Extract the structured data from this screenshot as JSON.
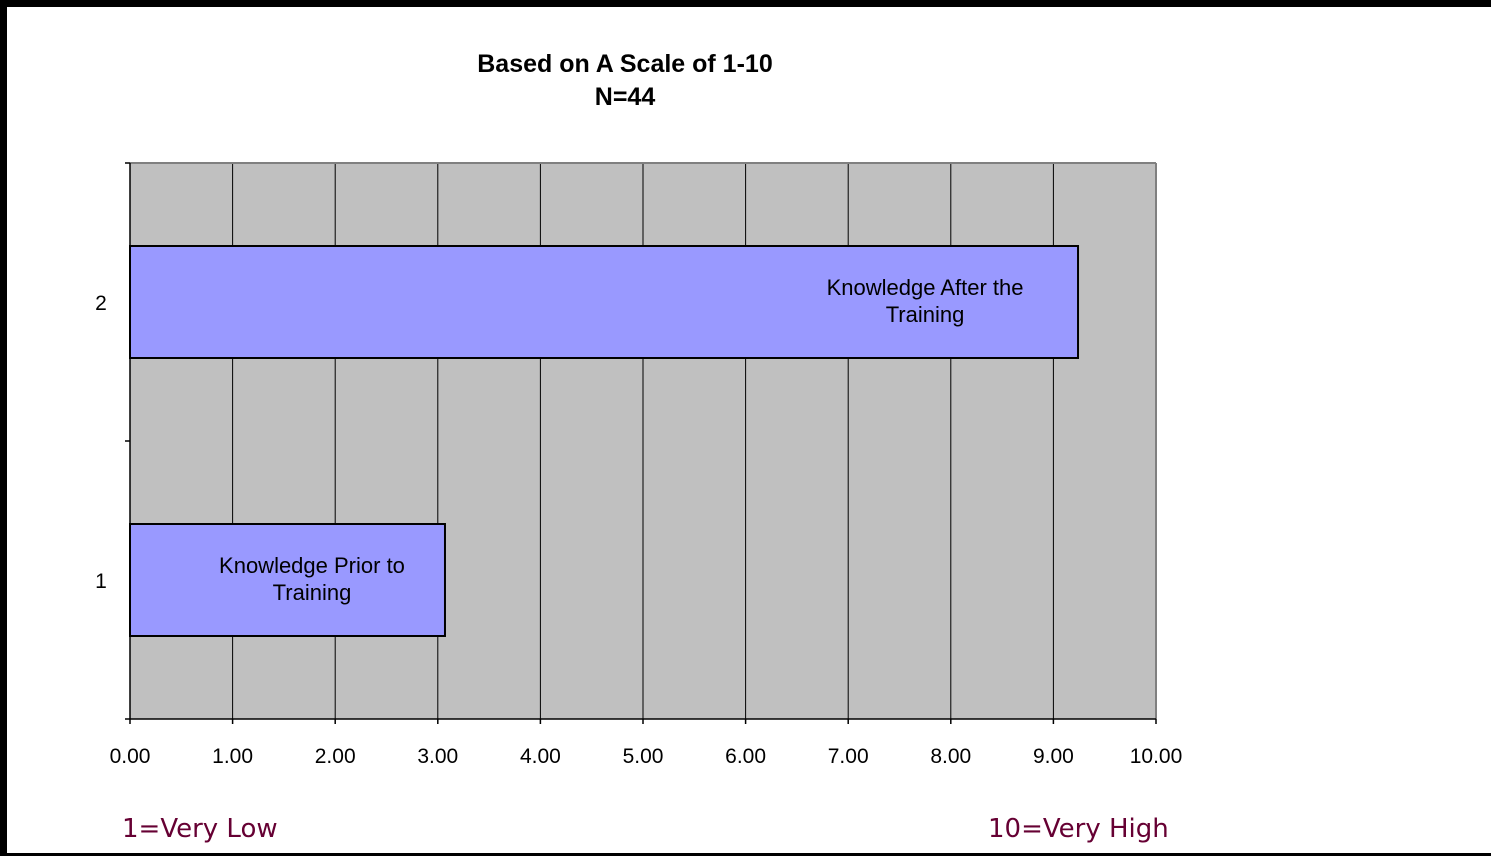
{
  "chart_data": {
    "type": "bar",
    "orientation": "horizontal",
    "title": "Based on A Scale of 1-10",
    "subtitle": "N=44",
    "categories": [
      "1",
      "2"
    ],
    "values": [
      3.07,
      9.24
    ],
    "bar_labels": [
      [
        "Knowledge Prior to",
        "Training"
      ],
      [
        "Knowledge After the",
        "Training"
      ]
    ],
    "xlim": [
      0,
      10
    ],
    "x_ticks": [
      "0.00",
      "1.00",
      "2.00",
      "3.00",
      "4.00",
      "5.00",
      "6.00",
      "7.00",
      "8.00",
      "9.00",
      "10.00"
    ],
    "xlabel": "",
    "ylabel": "",
    "grid": "vertical",
    "plot_background": "#c0c0c0",
    "bar_color": "#9999ff",
    "legend": "none"
  },
  "scale_notes": {
    "low": "1=Very Low",
    "high": "10=Very High",
    "color": "#660033"
  }
}
